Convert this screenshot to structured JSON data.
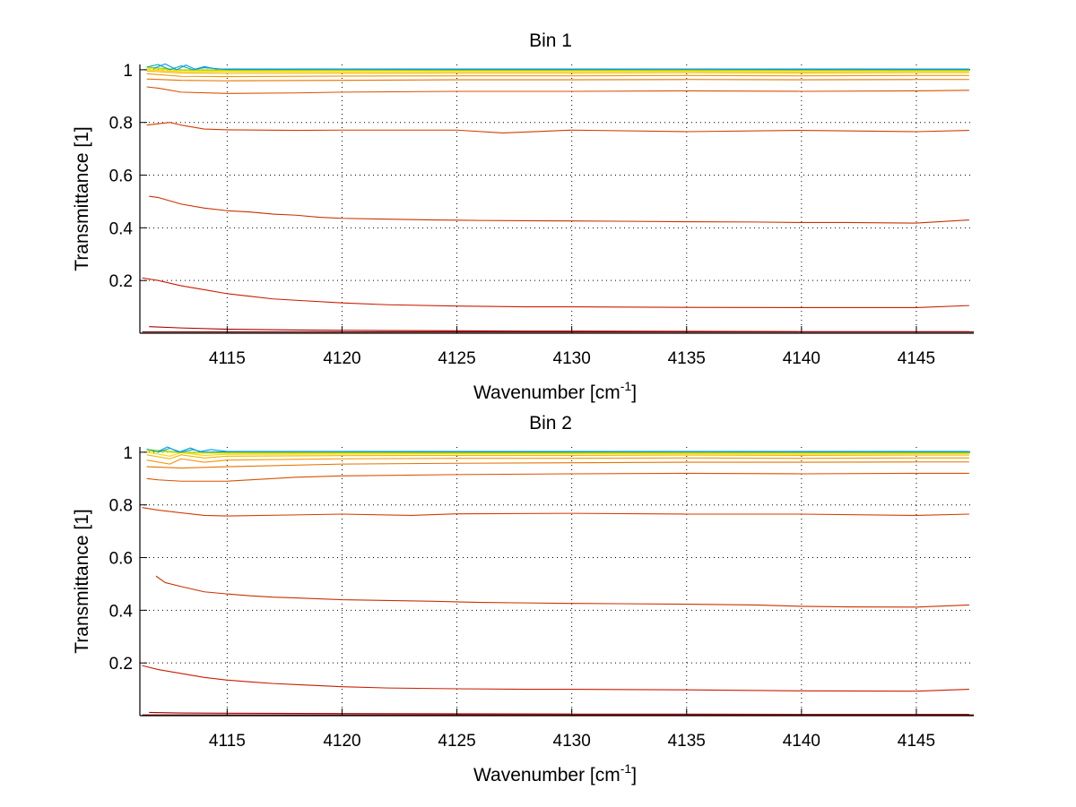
{
  "chart_data": [
    {
      "type": "line",
      "title": "Bin 1",
      "xlabel_main": "Wavenumber [cm",
      "xlabel_sup": "-1",
      "xlabel_end": "]",
      "ylabel": "Transmittance [1]",
      "xlim": [
        4111.2,
        4147.5
      ],
      "ylim": [
        0,
        1.02
      ],
      "xticks": [
        4115,
        4120,
        4125,
        4130,
        4135,
        4140,
        4145
      ],
      "xtick_labels": [
        "4115",
        "4120",
        "4125",
        "4130",
        "4135",
        "4140",
        "4145"
      ],
      "yticks": [
        0.2,
        0.4,
        0.6,
        0.8,
        1
      ],
      "ytick_labels": [
        "0.2",
        "0.4",
        "0.6",
        "0.8",
        "1"
      ],
      "grid": true,
      "series": [
        {
          "name": "bin1-curve-1",
          "color": "#7f0000",
          "x": [
            4111.3,
            4147.5
          ],
          "y": [
            0.005,
            0.005
          ]
        },
        {
          "name": "bin1-curve-2",
          "color": "#a50000",
          "x": [
            4111.6,
            4113,
            4115,
            4118,
            4122,
            4128,
            4135,
            4140,
            4145,
            4147.3
          ],
          "y": [
            0.025,
            0.02,
            0.015,
            0.012,
            0.01,
            0.008,
            0.007,
            0.006,
            0.006,
            0.006
          ]
        },
        {
          "name": "bin1-curve-3",
          "color": "#c81e00",
          "x": [
            4111.3,
            4112,
            4113,
            4114,
            4115,
            4116,
            4117,
            4118,
            4120,
            4122,
            4125,
            4128,
            4130,
            4135,
            4140,
            4145,
            4147.3
          ],
          "y": [
            0.21,
            0.2,
            0.18,
            0.165,
            0.15,
            0.14,
            0.13,
            0.125,
            0.115,
            0.108,
            0.103,
            0.1,
            0.1,
            0.098,
            0.097,
            0.097,
            0.105
          ]
        },
        {
          "name": "bin1-curve-4",
          "color": "#c83200",
          "x": [
            4111.6,
            4112,
            4113,
            4114,
            4115,
            4116,
            4117,
            4118,
            4119,
            4120,
            4122,
            4124,
            4126,
            4128,
            4130,
            4132,
            4135,
            4138,
            4140,
            4142,
            4145,
            4147.3
          ],
          "y": [
            0.52,
            0.515,
            0.49,
            0.475,
            0.465,
            0.46,
            0.452,
            0.448,
            0.44,
            0.436,
            0.433,
            0.43,
            0.428,
            0.427,
            0.426,
            0.425,
            0.423,
            0.422,
            0.42,
            0.42,
            0.418,
            0.43
          ]
        },
        {
          "name": "bin1-curve-5",
          "color": "#d23c00",
          "x": [
            4111.5,
            4112.5,
            4113,
            4114,
            4115,
            4118,
            4120,
            4125,
            4127,
            4130,
            4135,
            4140,
            4145,
            4147.3
          ],
          "y": [
            0.79,
            0.8,
            0.79,
            0.775,
            0.772,
            0.77,
            0.771,
            0.771,
            0.76,
            0.771,
            0.765,
            0.77,
            0.765,
            0.77
          ]
        },
        {
          "name": "bin1-curve-6",
          "color": "#dc5000",
          "x": [
            4111.5,
            4112,
            4113,
            4115,
            4118,
            4120,
            4125,
            4130,
            4135,
            4140,
            4145,
            4147.3
          ],
          "y": [
            0.935,
            0.93,
            0.915,
            0.91,
            0.912,
            0.915,
            0.918,
            0.918,
            0.92,
            0.918,
            0.92,
            0.922
          ]
        },
        {
          "name": "bin1-curve-7",
          "color": "#e67300",
          "x": [
            4111.5,
            4113,
            4115,
            4120,
            4125,
            4130,
            4135,
            4140,
            4145,
            4147.3
          ],
          "y": [
            0.965,
            0.96,
            0.958,
            0.96,
            0.962,
            0.962,
            0.963,
            0.962,
            0.963,
            0.963
          ]
        },
        {
          "name": "bin1-curve-8",
          "color": "#f09600",
          "x": [
            4111.5,
            4113,
            4115,
            4120,
            4125,
            4130,
            4135,
            4140,
            4145,
            4147.3
          ],
          "y": [
            0.985,
            0.975,
            0.974,
            0.976,
            0.977,
            0.977,
            0.978,
            0.977,
            0.978,
            0.978
          ]
        },
        {
          "name": "bin1-curve-9",
          "color": "#f5b400",
          "x": [
            4111.5,
            4113,
            4115,
            4120,
            4125,
            4130,
            4135,
            4140,
            4145,
            4147.3
          ],
          "y": [
            0.995,
            0.988,
            0.986,
            0.987,
            0.988,
            0.988,
            0.989,
            0.988,
            0.989,
            0.989
          ]
        },
        {
          "name": "bin1-curve-10",
          "color": "#ffd200",
          "x": [
            4111.5,
            4113,
            4115,
            4120,
            4125,
            4130,
            4135,
            4140,
            4145,
            4147.3
          ],
          "y": [
            1.0,
            0.993,
            0.992,
            0.993,
            0.994,
            0.994,
            0.994,
            0.993,
            0.994,
            0.994
          ]
        },
        {
          "name": "bin1-curve-11",
          "color": "#e6e600",
          "x": [
            4111.5,
            4113,
            4115,
            4120,
            4125,
            4130,
            4135,
            4140,
            4145,
            4147.3
          ],
          "y": [
            1.005,
            0.997,
            0.996,
            0.997,
            0.997,
            0.997,
            0.997,
            0.997,
            0.997,
            0.997
          ]
        },
        {
          "name": "bin1-curve-12",
          "color": "#96d200",
          "x": [
            4111.5,
            4113,
            4115,
            4120,
            4125,
            4130,
            4135,
            4140,
            4145,
            4147.3
          ],
          "y": [
            1.01,
            1.0,
            0.999,
            0.999,
            0.999,
            0.999,
            0.999,
            0.999,
            0.999,
            0.999
          ]
        },
        {
          "name": "bin1-curve-13",
          "color": "#00aaa0",
          "x": [
            4111.5,
            4112,
            4112.5,
            4113,
            4113.5,
            4114,
            4115,
            4120,
            4125,
            4130,
            4135,
            4140,
            4145,
            4147.3
          ],
          "y": [
            1.01,
            1.02,
            1.0,
            1.015,
            1.0,
            1.008,
            1.001,
            1.002,
            1.001,
            1.001,
            1.002,
            1.001,
            1.001,
            1.001
          ]
        },
        {
          "name": "bin1-curve-14",
          "color": "#0096ff",
          "x": [
            4111.8,
            4112.3,
            4112.8,
            4113.2,
            4113.6,
            4114,
            4114.5,
            4115,
            4120,
            4125,
            4130,
            4135,
            4140,
            4145,
            4147.3
          ],
          "y": [
            1.005,
            1.022,
            1.0,
            1.018,
            1.002,
            1.012,
            1.003,
            1.003,
            1.003,
            1.003,
            1.003,
            1.003,
            1.003,
            1.003,
            1.003
          ]
        }
      ]
    },
    {
      "type": "line",
      "title": "Bin 2",
      "xlabel_main": "Wavenumber [cm",
      "xlabel_sup": "-1",
      "xlabel_end": "]",
      "ylabel": "Transmittance [1]",
      "xlim": [
        4111.2,
        4147.5
      ],
      "ylim": [
        0,
        1.02
      ],
      "xticks": [
        4115,
        4120,
        4125,
        4130,
        4135,
        4140,
        4145
      ],
      "xtick_labels": [
        "4115",
        "4120",
        "4125",
        "4130",
        "4135",
        "4140",
        "4145"
      ],
      "yticks": [
        0.2,
        0.4,
        0.6,
        0.8,
        1
      ],
      "ytick_labels": [
        "0.2",
        "0.4",
        "0.6",
        "0.8",
        "1"
      ],
      "grid": true,
      "series": [
        {
          "name": "bin2-curve-1",
          "color": "#7f0000",
          "x": [
            4111.3,
            4147.5
          ],
          "y": [
            0.003,
            0.003
          ]
        },
        {
          "name": "bin2-curve-2",
          "color": "#a50000",
          "x": [
            4111.6,
            4113,
            4115,
            4120,
            4125,
            4130,
            4135,
            4140,
            4145,
            4147.3
          ],
          "y": [
            0.012,
            0.01,
            0.009,
            0.008,
            0.007,
            0.006,
            0.006,
            0.005,
            0.005,
            0.005
          ]
        },
        {
          "name": "bin2-curve-3",
          "color": "#c81e00",
          "x": [
            4111.3,
            4112,
            4113,
            4114,
            4115,
            4116,
            4117,
            4118,
            4120,
            4122,
            4125,
            4128,
            4130,
            4135,
            4140,
            4145,
            4147.3
          ],
          "y": [
            0.19,
            0.175,
            0.16,
            0.145,
            0.135,
            0.128,
            0.122,
            0.118,
            0.11,
            0.105,
            0.102,
            0.1,
            0.1,
            0.098,
            0.094,
            0.093,
            0.1
          ]
        },
        {
          "name": "bin2-curve-4",
          "color": "#c83200",
          "x": [
            4111.9,
            4112.3,
            4113,
            4114,
            4115,
            4116,
            4117,
            4118,
            4120,
            4122,
            4124,
            4126,
            4128,
            4130,
            4132,
            4135,
            4138,
            4140,
            4142,
            4145,
            4147.3
          ],
          "y": [
            0.53,
            0.505,
            0.49,
            0.47,
            0.462,
            0.455,
            0.45,
            0.447,
            0.44,
            0.437,
            0.434,
            0.43,
            0.428,
            0.426,
            0.425,
            0.423,
            0.42,
            0.415,
            0.413,
            0.412,
            0.42
          ]
        },
        {
          "name": "bin2-curve-5",
          "color": "#d23c00",
          "x": [
            4111.3,
            4112,
            4113,
            4114,
            4115,
            4118,
            4120,
            4123,
            4125,
            4130,
            4135,
            4140,
            4145,
            4147.3
          ],
          "y": [
            0.79,
            0.78,
            0.77,
            0.76,
            0.758,
            0.762,
            0.765,
            0.76,
            0.766,
            0.768,
            0.765,
            0.765,
            0.76,
            0.765
          ]
        },
        {
          "name": "bin2-curve-6",
          "color": "#dc5000",
          "x": [
            4111.5,
            4112,
            4113,
            4115,
            4118,
            4120,
            4125,
            4130,
            4135,
            4140,
            4145,
            4147.3
          ],
          "y": [
            0.9,
            0.895,
            0.89,
            0.89,
            0.905,
            0.91,
            0.915,
            0.918,
            0.92,
            0.918,
            0.92,
            0.92
          ]
        },
        {
          "name": "bin2-curve-7",
          "color": "#e67300",
          "x": [
            4111.5,
            4113,
            4115,
            4120,
            4125,
            4130,
            4135,
            4140,
            4145,
            4147.3
          ],
          "y": [
            0.945,
            0.94,
            0.945,
            0.955,
            0.958,
            0.96,
            0.962,
            0.962,
            0.963,
            0.963
          ]
        },
        {
          "name": "bin2-curve-8",
          "color": "#f09600",
          "x": [
            4111.5,
            4112.5,
            4113,
            4114,
            4115,
            4120,
            4125,
            4130,
            4135,
            4140,
            4145,
            4147.3
          ],
          "y": [
            0.97,
            0.955,
            0.975,
            0.962,
            0.97,
            0.975,
            0.977,
            0.977,
            0.978,
            0.977,
            0.978,
            0.978
          ]
        },
        {
          "name": "bin2-curve-9",
          "color": "#f5b400",
          "x": [
            4111.5,
            4112.5,
            4113,
            4114,
            4115,
            4120,
            4125,
            4130,
            4135,
            4140,
            4145,
            4147.3
          ],
          "y": [
            0.99,
            0.975,
            0.99,
            0.978,
            0.985,
            0.987,
            0.988,
            0.988,
            0.989,
            0.988,
            0.989,
            0.989
          ]
        },
        {
          "name": "bin2-curve-10",
          "color": "#ffd200",
          "x": [
            4111.5,
            4112.5,
            4113,
            4114,
            4115,
            4120,
            4125,
            4130,
            4135,
            4140,
            4145,
            4147.3
          ],
          "y": [
            1.0,
            0.985,
            0.998,
            0.988,
            0.992,
            0.993,
            0.994,
            0.994,
            0.994,
            0.993,
            0.994,
            0.994
          ]
        },
        {
          "name": "bin2-curve-11",
          "color": "#e6e600",
          "x": [
            4111.5,
            4113,
            4115,
            4120,
            4125,
            4130,
            4135,
            4140,
            4145,
            4147.3
          ],
          "y": [
            1.005,
            0.997,
            0.996,
            0.997,
            0.997,
            0.997,
            0.997,
            0.997,
            0.997,
            0.997
          ]
        },
        {
          "name": "bin2-curve-12",
          "color": "#96d200",
          "x": [
            4111.5,
            4113,
            4115,
            4120,
            4125,
            4130,
            4135,
            4140,
            4145,
            4147.3
          ],
          "y": [
            1.01,
            1.0,
            0.999,
            0.999,
            0.999,
            0.999,
            0.999,
            0.999,
            0.999,
            0.999
          ]
        },
        {
          "name": "bin2-curve-13",
          "color": "#00aaa0",
          "x": [
            4111.5,
            4112,
            4112.5,
            4113,
            4113.5,
            4114,
            4115,
            4120,
            4125,
            4130,
            4135,
            4140,
            4145,
            4147.3
          ],
          "y": [
            1.012,
            1.0,
            1.015,
            1.0,
            1.01,
            1.0,
            1.002,
            1.002,
            1.001,
            1.001,
            1.002,
            1.001,
            1.001,
            1.001
          ]
        },
        {
          "name": "bin2-curve-14",
          "color": "#0096ff",
          "x": [
            4112.0,
            4112.4,
            4112.9,
            4113.4,
            4113.8,
            4114.3,
            4115,
            4120,
            4125,
            4130,
            4135,
            4140,
            4145,
            4147.3
          ],
          "y": [
            1.003,
            1.02,
            1.0,
            1.016,
            1.002,
            1.01,
            1.003,
            1.003,
            1.003,
            1.003,
            1.003,
            1.003,
            1.003,
            1.003
          ]
        }
      ]
    }
  ]
}
